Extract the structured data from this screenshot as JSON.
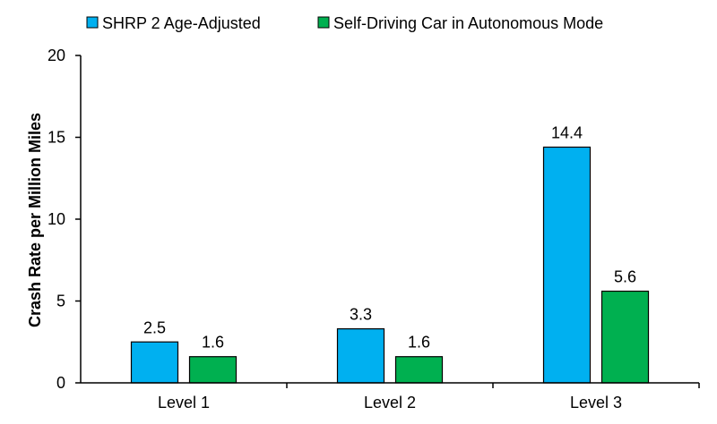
{
  "chart_data": {
    "type": "bar",
    "title": "",
    "xlabel": "",
    "ylabel": "Crash Rate per Million Miles",
    "categories": [
      "Level 1",
      "Level 2",
      "Level 3"
    ],
    "series": [
      {
        "name": "SHRP 2 Age-Adjusted",
        "values": [
          2.5,
          3.3,
          14.4
        ],
        "labels": [
          "2.5",
          "3.3",
          "14.4"
        ],
        "color": "#00B0F0"
      },
      {
        "name": "Self-Driving Car in Autonomous Mode",
        "values": [
          1.6,
          1.6,
          5.6
        ],
        "labels": [
          "1.6",
          "1.6",
          "5.6"
        ],
        "color": "#00B050"
      }
    ],
    "ylim": [
      0,
      20
    ],
    "yticks": [
      0,
      5,
      10,
      15,
      20
    ],
    "grid": false,
    "legend_position": "top"
  }
}
